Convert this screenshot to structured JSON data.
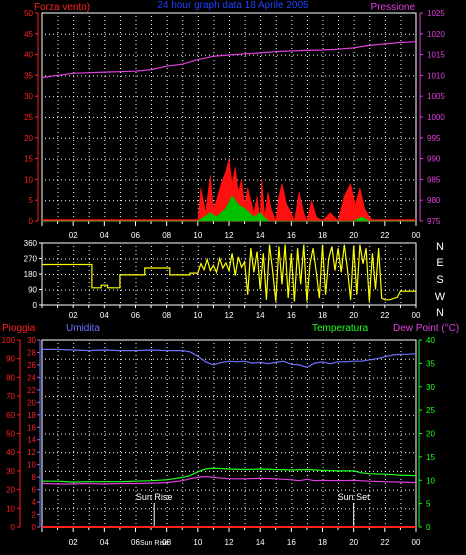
{
  "header": {
    "left": "Forza vento)",
    "center": "24 hour graph data  18 Aprile 2005",
    "right": "Pressione"
  },
  "colors": {
    "background": "#000000",
    "frame": "#ffffff",
    "grid_dot": "#ffffff",
    "wind_axis": "#ff2020",
    "pressure_axis": "#e040e0",
    "center_title": "#2040ff",
    "wind_fill": "#ff1010",
    "wind_avg": "#00c000",
    "dir_line": "#ffff00",
    "rain": "#ff2020",
    "humidity": "#7070ff",
    "temperature": "#20ff20",
    "dewpoint": "#e040e0",
    "sunline": "#ffffff"
  },
  "chart_data": [
    {
      "type": "area",
      "title": "24 hour graph data  18 Aprile 2005",
      "x_tick_labels": [
        "02",
        "04",
        "06",
        "08",
        "10",
        "12",
        "14",
        "16",
        "18",
        "20",
        "22",
        "00"
      ],
      "left_axis": {
        "label": "Forza vento)",
        "ticks": [
          "0",
          "5",
          "10",
          "15",
          "20",
          "25",
          "30",
          "35",
          "40",
          "45",
          "50"
        ],
        "ylim": [
          0,
          50
        ]
      },
      "right_axis": {
        "label": "Pressione",
        "ticks": [
          "975",
          "980",
          "985",
          "990",
          "995",
          "1000",
          "1005",
          "1010",
          "1015",
          "1020",
          "1025"
        ],
        "ylim": [
          975,
          1025
        ]
      },
      "series": [
        {
          "name": "Pressione",
          "axis": "right",
          "x": [
            0,
            2,
            4,
            6,
            7,
            8,
            9,
            10,
            11,
            12,
            13,
            14,
            15,
            16,
            17,
            18,
            19,
            20,
            21,
            22,
            23,
            24
          ],
          "y": [
            1009.5,
            1010.5,
            1010.8,
            1011.0,
            1011.4,
            1012.2,
            1012.7,
            1013.8,
            1014.6,
            1014.9,
            1015.2,
            1015.4,
            1015.7,
            1015.9,
            1016.0,
            1016.1,
            1016.3,
            1016.6,
            1017.2,
            1017.6,
            1017.9,
            1018.1
          ]
        },
        {
          "name": "",
          "axis": "left",
          "x": [
            0,
            10.0,
            10.2,
            10.5,
            10.8,
            11.0,
            11.2,
            11.5,
            11.8,
            12.0,
            12.2,
            12.4,
            12.6,
            12.8,
            13.0,
            13.2,
            13.4,
            13.6,
            13.8,
            14.0,
            14.1,
            14.3,
            14.5,
            14.7,
            15.0,
            15.2,
            15.4,
            15.7,
            16.0,
            16.2,
            16.5,
            16.8,
            17.0,
            17.3,
            17.6,
            18.0,
            18.5,
            19.0,
            19.4,
            19.8,
            20.1,
            20.4,
            20.7,
            21.0,
            21.3,
            21.6,
            22.0,
            24
          ],
          "y": [
            0,
            0,
            8,
            2,
            11,
            3,
            5,
            9,
            12,
            15,
            9,
            13,
            7,
            10,
            4,
            8,
            5,
            2,
            6,
            0,
            10,
            1,
            7,
            3,
            0,
            6,
            9,
            4,
            2,
            0,
            7,
            2,
            0,
            5,
            1,
            0,
            2,
            0,
            6,
            9,
            4,
            8,
            3,
            1,
            0,
            0,
            0,
            0
          ]
        },
        {
          "name": "",
          "axis": "left",
          "x": [
            0,
            10.0,
            10.8,
            11.2,
            11.8,
            12.2,
            12.6,
            13.0,
            13.6,
            14.0,
            14.5,
            15.5,
            20.0,
            20.5,
            21.0,
            24
          ],
          "y": [
            0,
            0,
            2,
            1,
            3,
            6,
            4,
            3,
            1,
            2,
            0,
            0,
            0,
            1,
            0,
            0
          ]
        }
      ]
    },
    {
      "type": "line",
      "title": "",
      "x_tick_labels": [
        "02",
        "04",
        "06",
        "08",
        "10",
        "12",
        "14",
        "16",
        "18",
        "20",
        "22",
        "00"
      ],
      "left_axis": {
        "ticks": [
          "0",
          "90",
          "180",
          "270",
          "360"
        ],
        "ylim": [
          0,
          360
        ]
      },
      "right_axis": {
        "ticks": [
          "N",
          "W",
          "S",
          "E",
          "N"
        ]
      },
      "series": [
        {
          "name": "",
          "x": [
            0,
            3.2,
            3.2,
            3.8,
            3.8,
            4.2,
            4.2,
            5.0,
            5.0,
            6.6,
            6.6,
            8.2,
            8.2,
            9.5,
            9.5,
            10.0,
            10.2,
            10.4,
            10.6,
            10.8,
            11.0,
            11.2,
            11.4,
            11.6,
            11.8,
            12.0,
            12.2,
            12.4,
            12.6,
            12.8,
            13.0,
            13.2,
            13.4,
            13.6,
            13.8,
            14.0,
            14.2,
            14.4,
            14.6,
            14.8,
            15.0,
            15.2,
            15.4,
            15.6,
            15.8,
            16.0,
            16.2,
            16.4,
            16.6,
            16.8,
            17.0,
            17.2,
            17.4,
            17.6,
            17.8,
            18.0,
            18.2,
            18.4,
            18.6,
            18.8,
            19.0,
            19.2,
            19.4,
            19.6,
            19.8,
            20.0,
            20.2,
            20.4,
            20.6,
            20.8,
            21.0,
            21.2,
            21.4,
            21.6,
            21.8,
            22.0,
            22.3,
            22.8,
            23.0,
            24
          ],
          "y": [
            235,
            235,
            100,
            100,
            115,
            115,
            100,
            100,
            175,
            175,
            215,
            215,
            175,
            175,
            185,
            185,
            240,
            205,
            265,
            200,
            230,
            190,
            270,
            215,
            245,
            200,
            300,
            170,
            280,
            220,
            250,
            60,
            330,
            190,
            310,
            90,
            300,
            30,
            350,
            200,
            20,
            340,
            120,
            350,
            40,
            300,
            20,
            330,
            120,
            350,
            20,
            240,
            330,
            190,
            40,
            350,
            60,
            270,
            340,
            200,
            330,
            190,
            350,
            210,
            30,
            345,
            60,
            350,
            240,
            330,
            20,
            300,
            90,
            330,
            40,
            30,
            30,
            45,
            80,
            80
          ]
        }
      ]
    },
    {
      "type": "line",
      "title": "",
      "x_tick_labels": [
        "02",
        "04",
        "06",
        "Sun Rise",
        "08",
        "10",
        "12",
        "14",
        "16",
        "18",
        "20",
        "22",
        "00"
      ],
      "axes_labels": {
        "rain": "Pioggia",
        "humidity": "Umidita",
        "temperature": "Temperatura",
        "dewpoint": "Dew Point (°C)"
      },
      "rain_axis": {
        "ticks": [
          "0",
          "10",
          "20",
          "30",
          "40",
          "50",
          "60",
          "70",
          "80",
          "90",
          "100"
        ],
        "ylim": [
          0,
          100
        ]
      },
      "humidity_axis": {
        "ticks": [
          "0",
          "2",
          "4",
          "6",
          "8",
          "10",
          "12",
          "14",
          "16",
          "18",
          "20",
          "22",
          "24",
          "26",
          "28",
          "30"
        ],
        "ylim": [
          0,
          30
        ]
      },
      "temp_axis": {
        "ticks": [
          "0",
          "5",
          "10",
          "15",
          "20",
          "25",
          "30",
          "35",
          "40"
        ],
        "ylim": [
          0,
          40
        ]
      },
      "annotations": [
        {
          "text": "Sun Rise",
          "x": 7.2
        },
        {
          "text": "Sun Set",
          "x": 20.0
        }
      ],
      "series": [
        {
          "name": "Umidita",
          "axis": "humidity",
          "x": [
            0,
            1,
            2,
            3,
            4,
            5,
            6,
            7,
            8,
            9,
            9.5,
            10,
            10.5,
            11,
            11.5,
            12,
            12.5,
            13,
            13.5,
            14,
            14.5,
            15,
            15.5,
            16,
            16.5,
            17,
            17.5,
            18,
            18.5,
            19,
            19.5,
            20,
            20.5,
            21,
            21.5,
            22,
            22.5,
            23,
            23.5,
            24
          ],
          "y": [
            28.5,
            28.5,
            28.4,
            28.3,
            28.4,
            28.3,
            28.3,
            28.4,
            28.3,
            28.3,
            28.1,
            27.4,
            26.5,
            26.0,
            26.4,
            26.6,
            26.5,
            26.6,
            26.3,
            26.4,
            26.2,
            26.4,
            26.6,
            26.1,
            26.0,
            25.6,
            26.3,
            26.5,
            26.2,
            26.5,
            26.5,
            26.6,
            26.6,
            26.8,
            27.0,
            27.3,
            27.6,
            27.7,
            27.7,
            27.8
          ]
        },
        {
          "name": "Temperatura",
          "axis": "temp",
          "x": [
            0,
            1,
            2,
            3,
            4,
            5,
            6,
            7,
            8,
            9,
            9.5,
            10,
            10.5,
            11,
            11.5,
            12,
            13,
            14,
            15,
            16,
            17,
            18,
            19,
            20,
            20.5,
            21,
            22,
            23,
            24
          ],
          "y": [
            9.8,
            9.8,
            9.6,
            9.7,
            9.7,
            9.7,
            9.8,
            9.9,
            10.1,
            10.6,
            11.0,
            11.8,
            12.4,
            12.6,
            12.5,
            12.4,
            12.3,
            12.4,
            12.3,
            12.2,
            12.3,
            12.1,
            12.0,
            12.0,
            11.6,
            11.4,
            11.3,
            11.1,
            11.0
          ]
        },
        {
          "name": "Dew Point (°C)",
          "axis": "temp",
          "x": [
            0,
            1,
            2,
            3,
            4,
            5,
            6,
            7,
            8,
            9,
            9.5,
            10,
            10.5,
            11,
            12,
            13,
            14,
            15,
            16,
            16.5,
            17,
            17.5,
            18,
            19,
            20,
            21,
            22,
            23,
            24
          ],
          "y": [
            9.3,
            9.2,
            9.2,
            9.3,
            9.2,
            9.3,
            9.3,
            9.4,
            9.5,
            9.9,
            10.3,
            10.6,
            10.8,
            10.6,
            10.3,
            10.3,
            10.4,
            10.3,
            10.1,
            9.9,
            10.2,
            9.9,
            10.0,
            9.9,
            10.0,
            9.8,
            9.7,
            9.6,
            9.5
          ]
        },
        {
          "name": "Pioggia",
          "axis": "rain",
          "x": [
            0,
            24
          ],
          "y": [
            0,
            0
          ]
        }
      ]
    }
  ]
}
